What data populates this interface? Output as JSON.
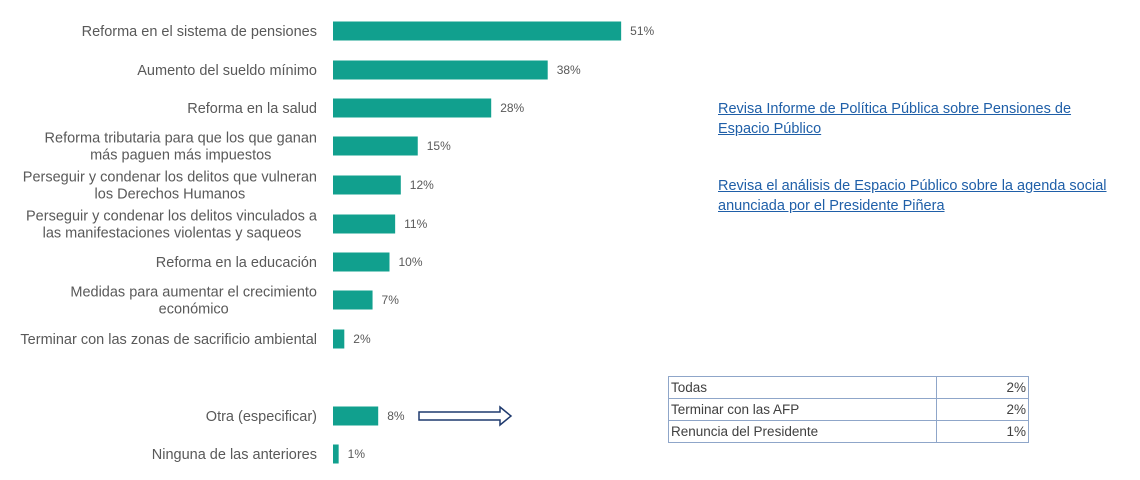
{
  "chart_data": {
    "type": "bar",
    "orientation": "horizontal",
    "color": "#11a08e",
    "categories": [
      [
        "Reforma en el sistema de pensiones"
      ],
      [
        "Aumento del sueldo mínimo"
      ],
      [
        "Reforma en la salud"
      ],
      [
        "Reforma tributaria para que los que ganan",
        "más paguen más impuestos"
      ],
      [
        "Perseguir y condenar los delitos que vulneran",
        "los Derechos Humanos"
      ],
      [
        "Perseguir y condenar los delitos vinculados a",
        "las manifestaciones violentas y saqueos"
      ],
      [
        "Reforma en la educación"
      ],
      [
        "Medidas para aumentar el crecimiento",
        "económico"
      ],
      [
        "Terminar con las zonas de sacrificio ambiental"
      ],
      [
        "Otra (especificar)"
      ],
      [
        "Ninguna de las anteriores"
      ]
    ],
    "values": [
      51,
      38,
      28,
      15,
      12,
      11,
      10,
      7,
      2,
      8,
      1
    ],
    "value_labels": [
      "51%",
      "38%",
      "28%",
      "15%",
      "12%",
      "11%",
      "10%",
      "7%",
      "2%",
      "8%",
      "1%"
    ],
    "unit": "%"
  },
  "links": [
    {
      "text": "Revisa Informe de Política Pública sobre Pensiones de Espacio Público"
    },
    {
      "text": "Revisa el análisis de Espacio Público sobre la agenda social anunciada por el Presidente Piñera"
    }
  ],
  "other_table": {
    "rows": [
      {
        "label": "Todas",
        "value": "2%"
      },
      {
        "label": "Terminar con las AFP",
        "value": "2%"
      },
      {
        "label": "Renuncia del Presidente",
        "value": "1%"
      }
    ]
  }
}
